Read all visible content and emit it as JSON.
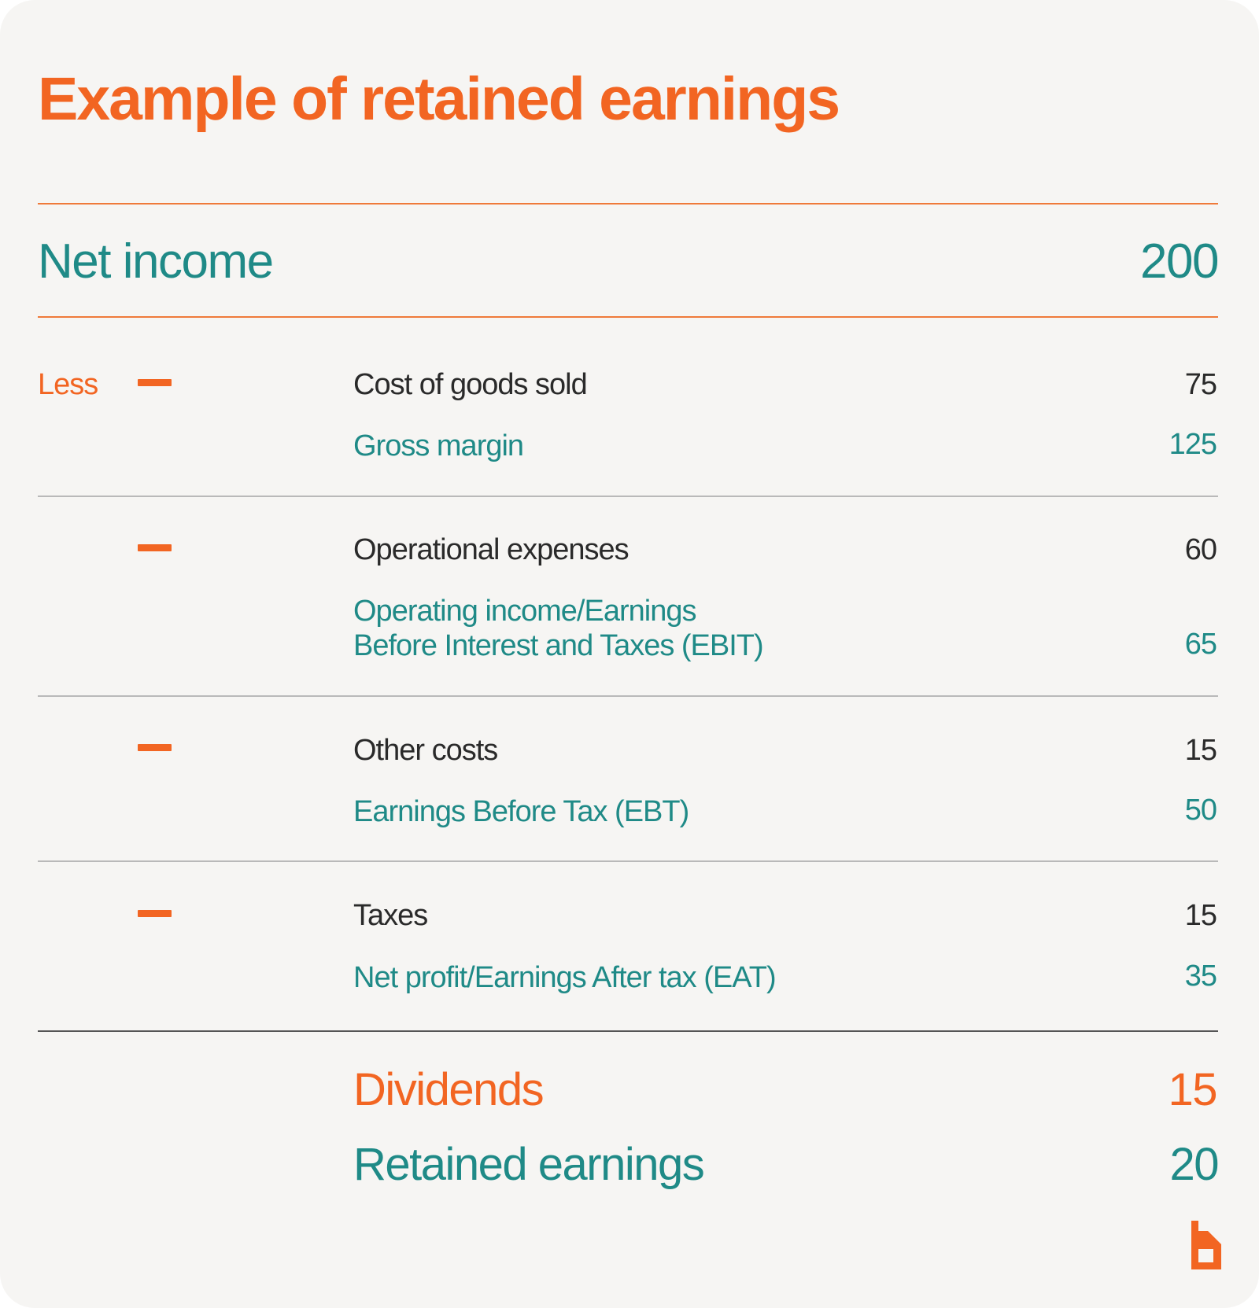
{
  "title": "Example of retained earnings",
  "net_income": {
    "label": "Net income",
    "value": "200"
  },
  "less_label": "Less",
  "groups": [
    {
      "item": {
        "label": "Cost of goods sold",
        "value": "75"
      },
      "result": {
        "label_line1": "Gross margin",
        "label_line2": "",
        "value": "125"
      }
    },
    {
      "item": {
        "label": "Operational expenses",
        "value": "60"
      },
      "result": {
        "label_line1": "Operating income/Earnings",
        "label_line2": "Before Interest and Taxes (EBIT)",
        "value": "65"
      }
    },
    {
      "item": {
        "label": "Other costs",
        "value": "15"
      },
      "result": {
        "label_line1": "Earnings Before Tax (EBT)",
        "label_line2": "",
        "value": "50"
      }
    },
    {
      "item": {
        "label": "Taxes",
        "value": "15"
      },
      "result": {
        "label_line1": "Net profit/Earnings After tax (EAT)",
        "label_line2": "",
        "value": "35"
      }
    }
  ],
  "dividends": {
    "label": "Dividends",
    "value": "15"
  },
  "retained_earnings": {
    "label": "Retained earnings",
    "value": "20"
  },
  "colors": {
    "orange": "#f26522",
    "teal": "#1f8a87",
    "text": "#2a2a2a",
    "background": "#f6f5f3"
  },
  "icons": {
    "minus": "minus-icon",
    "logo": "brand-logo-b"
  }
}
